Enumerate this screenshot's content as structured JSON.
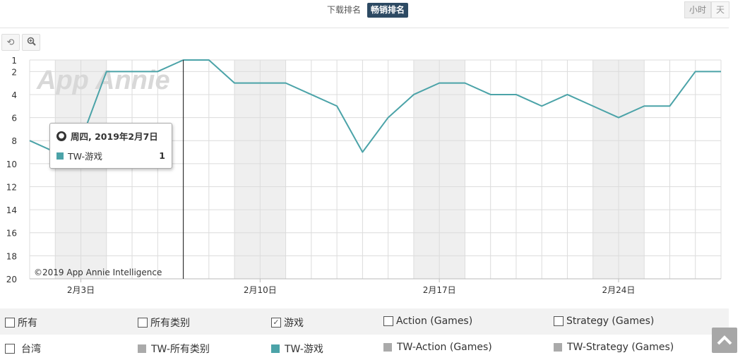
{
  "tabs": [
    {
      "label": "下载排名",
      "active": false
    },
    {
      "label": "畅销排名",
      "active": true
    }
  ],
  "granularity": [
    {
      "label": "小时",
      "active": true
    },
    {
      "label": "天",
      "active": false
    }
  ],
  "tools": {
    "reset_icon": "reset-icon",
    "zoom_icon": "zoom-icon"
  },
  "chart_data": {
    "type": "line",
    "x": [
      "2019-02-01",
      "2019-02-02",
      "2019-02-03",
      "2019-02-04",
      "2019-02-05",
      "2019-02-06",
      "2019-02-07",
      "2019-02-08",
      "2019-02-09",
      "2019-02-10",
      "2019-02-11",
      "2019-02-12",
      "2019-02-13",
      "2019-02-14",
      "2019-02-15",
      "2019-02-16",
      "2019-02-17",
      "2019-02-18",
      "2019-02-19",
      "2019-02-20",
      "2019-02-21",
      "2019-02-22",
      "2019-02-23",
      "2019-02-24",
      "2019-02-25",
      "2019-02-26",
      "2019-02-27",
      "2019-02-28"
    ],
    "series": [
      {
        "name": "TW-游戏",
        "color": "#4ba3a8",
        "values": [
          8,
          9,
          8,
          2,
          2,
          2,
          1,
          1,
          3,
          3,
          3,
          4,
          5,
          9,
          6,
          4,
          3,
          3,
          4,
          4,
          5,
          4,
          5,
          6,
          5,
          5,
          2,
          2
        ]
      }
    ],
    "ylim": [
      20,
      1
    ],
    "y_reversed": true,
    "yticks": [
      1,
      2,
      4,
      6,
      8,
      10,
      12,
      14,
      16,
      18,
      20
    ],
    "xtick_labels": [
      {
        "x": "2019-02-03",
        "label": "2月3日"
      },
      {
        "x": "2019-02-10",
        "label": "2月10日"
      },
      {
        "x": "2019-02-17",
        "label": "2月17日"
      },
      {
        "x": "2019-02-24",
        "label": "2月24日"
      }
    ],
    "weekend_shading": [
      [
        "2019-02-02",
        "2019-02-03"
      ],
      [
        "2019-02-09",
        "2019-02-10"
      ],
      [
        "2019-02-16",
        "2019-02-17"
      ],
      [
        "2019-02-23",
        "2019-02-24"
      ]
    ],
    "grid": true,
    "watermark": "App Annie",
    "credit": "©2019 App Annie Intelligence",
    "crosshair_x": "2019-02-07",
    "tooltip": {
      "title": "周四, 2019年2月7日",
      "series": "TW-游戏",
      "value": "1"
    }
  },
  "legend": {
    "filters": [
      {
        "label": "所有",
        "checked": false
      },
      {
        "label": "所有类别",
        "checked": false
      },
      {
        "label": "游戏",
        "checked": true
      },
      {
        "label": "Action (Games)",
        "checked": false
      },
      {
        "label": "Strategy (Games)",
        "checked": false
      }
    ],
    "country": {
      "label": "台湾",
      "checked": false
    },
    "series": [
      {
        "label": "TW-所有类别",
        "color": "#aaaaaa"
      },
      {
        "label": "TW-游戏",
        "color": "#4ba3a8"
      },
      {
        "label": "TW-Action (Games)",
        "color": "#aaaaaa"
      },
      {
        "label": "TW-Strategy (Games)",
        "color": "#aaaaaa"
      }
    ]
  },
  "scroll_top_icon": "chevron-up-icon"
}
